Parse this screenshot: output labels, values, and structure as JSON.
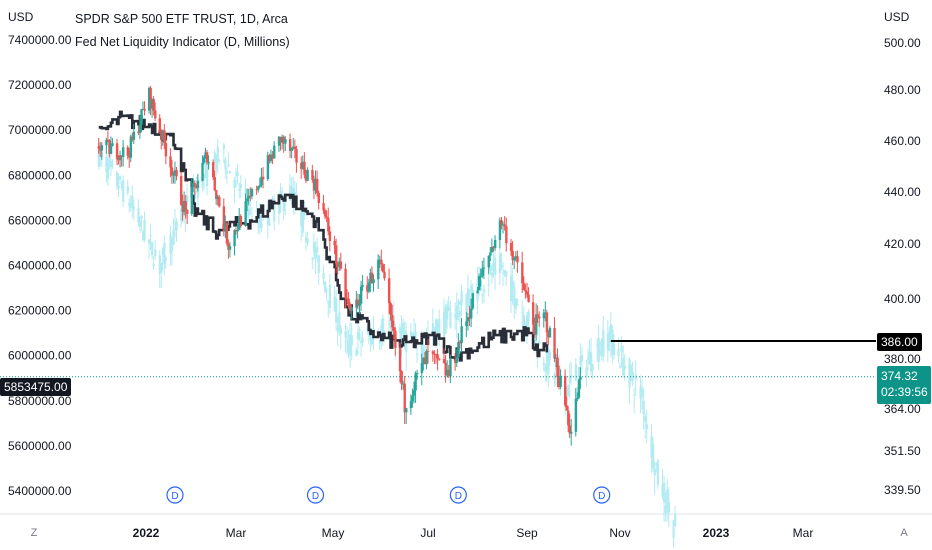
{
  "header": {
    "title": "SPDR S&P 500 ETF TRUST, 1D, Arca",
    "indicator": "Fed Net Liquidity Indicator (D, Millions)",
    "left_unit": "USD",
    "right_unit": "USD"
  },
  "colors": {
    "up": "#26a69a",
    "down": "#ef5350",
    "liquidity": "#b2ebf2",
    "liquidity_line": "#2a2e39",
    "accent": "#0d9488"
  },
  "price_tags": {
    "current_price": "374.32",
    "countdown": "02:39:56",
    "level_price": "386.00",
    "liquidity_value": "5853475.00"
  },
  "corner": {
    "left": "Z",
    "right": "A"
  },
  "event_marker_label": "D",
  "chart_data": {
    "type": "candlestick",
    "x_ticks": [
      "2022",
      "Mar",
      "May",
      "Jul",
      "Sep",
      "Nov",
      "2023",
      "Mar"
    ],
    "left_axis": {
      "ticks": [
        "7400000.00",
        "7200000.00",
        "7000000.00",
        "6800000.00",
        "6600000.00",
        "6400000.00",
        "6200000.00",
        "6000000.00",
        "5800000.00",
        "5600000.00",
        "5400000.00"
      ],
      "range": [
        5300000,
        7440000
      ]
    },
    "right_axis": {
      "ticks": [
        "500.00",
        "480.00",
        "460.00",
        "440.00",
        "420.00",
        "400.00",
        "380.00",
        "364.00",
        "351.50",
        "339.50"
      ],
      "range": [
        332,
        510
      ]
    },
    "spy_anchors": [
      {
        "date": "2021-12-01",
        "value": 458
      },
      {
        "date": "2021-12-20",
        "value": 455
      },
      {
        "date": "2022-01-03",
        "value": 478
      },
      {
        "date": "2022-01-27",
        "value": 432
      },
      {
        "date": "2022-02-10",
        "value": 455
      },
      {
        "date": "2022-02-24",
        "value": 420
      },
      {
        "date": "2022-03-29",
        "value": 461
      },
      {
        "date": "2022-04-20",
        "value": 443
      },
      {
        "date": "2022-05-12",
        "value": 395
      },
      {
        "date": "2022-05-31",
        "value": 413
      },
      {
        "date": "2022-06-16",
        "value": 366
      },
      {
        "date": "2022-07-01",
        "value": 381
      },
      {
        "date": "2022-07-14",
        "value": 375
      },
      {
        "date": "2022-08-16",
        "value": 429
      },
      {
        "date": "2022-09-06",
        "value": 391
      },
      {
        "date": "2022-09-13",
        "value": 394
      },
      {
        "date": "2022-09-30",
        "value": 357
      },
      {
        "date": "2022-10-06",
        "value": 374.32
      }
    ],
    "liquidity_line_anchors": [
      {
        "date": "2021-12-01",
        "value": 6980000
      },
      {
        "date": "2021-12-15",
        "value": 7050000
      },
      {
        "date": "2022-01-05",
        "value": 7020000
      },
      {
        "date": "2022-01-20",
        "value": 6950000
      },
      {
        "date": "2022-02-01",
        "value": 6650000
      },
      {
        "date": "2022-02-15",
        "value": 6550000
      },
      {
        "date": "2022-03-10",
        "value": 6600000
      },
      {
        "date": "2022-04-01",
        "value": 6720000
      },
      {
        "date": "2022-04-20",
        "value": 6600000
      },
      {
        "date": "2022-05-10",
        "value": 6200000
      },
      {
        "date": "2022-05-31",
        "value": 6080000
      },
      {
        "date": "2022-06-15",
        "value": 6050000
      },
      {
        "date": "2022-07-05",
        "value": 6080000
      },
      {
        "date": "2022-07-20",
        "value": 6000000
      },
      {
        "date": "2022-08-10",
        "value": 6080000
      },
      {
        "date": "2022-09-01",
        "value": 6100000
      },
      {
        "date": "2022-09-05",
        "value": 6020000
      },
      {
        "date": "2022-09-13",
        "value": 6030000
      }
    ],
    "liquidity_ghost_anchors": [
      {
        "date": "2021-12-01",
        "value": 455
      },
      {
        "date": "2021-12-20",
        "value": 438
      },
      {
        "date": "2022-01-10",
        "value": 412
      },
      {
        "date": "2022-02-01",
        "value": 440
      },
      {
        "date": "2022-02-20",
        "value": 455
      },
      {
        "date": "2022-03-15",
        "value": 428
      },
      {
        "date": "2022-04-05",
        "value": 440
      },
      {
        "date": "2022-05-10",
        "value": 384
      },
      {
        "date": "2022-06-05",
        "value": 391
      },
      {
        "date": "2022-06-25",
        "value": 384
      },
      {
        "date": "2022-07-20",
        "value": 397
      },
      {
        "date": "2022-08-15",
        "value": 412
      },
      {
        "date": "2022-09-10",
        "value": 383
      },
      {
        "date": "2022-09-26",
        "value": 370
      },
      {
        "date": "2022-10-25",
        "value": 388
      },
      {
        "date": "2022-11-01",
        "value": 381
      },
      {
        "date": "2022-11-15",
        "value": 368
      },
      {
        "date": "2022-11-25",
        "value": 344
      },
      {
        "date": "2022-12-05",
        "value": 330
      }
    ],
    "horizontal_level": {
      "value": 386.0,
      "from": "2022-10-26"
    },
    "current_level": {
      "value": 374.32
    },
    "event_markers": [
      "2022-01-20",
      "2022-04-20",
      "2022-07-20",
      "2022-10-20"
    ]
  }
}
